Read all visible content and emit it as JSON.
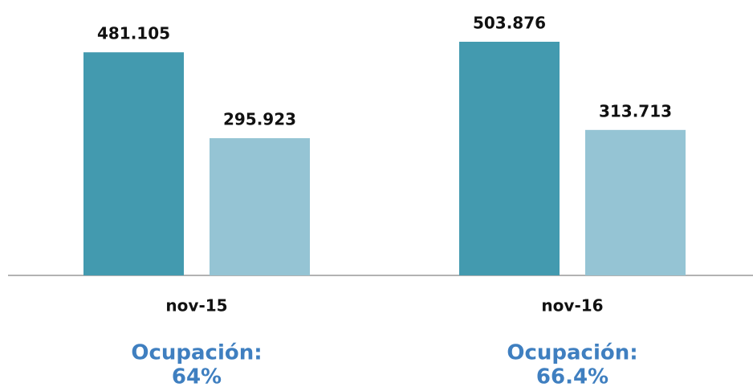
{
  "chart_data": {
    "type": "bar",
    "categories": [
      "nov-15",
      "nov-16"
    ],
    "series": [
      {
        "color": "#439aaf",
        "values": [
          481105,
          503876
        ],
        "value_labels": [
          "481.105",
          "503.876"
        ]
      },
      {
        "color": "#95c4d4",
        "values": [
          295923,
          313713
        ],
        "value_labels": [
          "295.923",
          "313.713"
        ]
      }
    ],
    "annotations": [
      [
        "Ocupación:",
        "64%"
      ],
      [
        "Ocupación:",
        "66.4%"
      ]
    ]
  }
}
